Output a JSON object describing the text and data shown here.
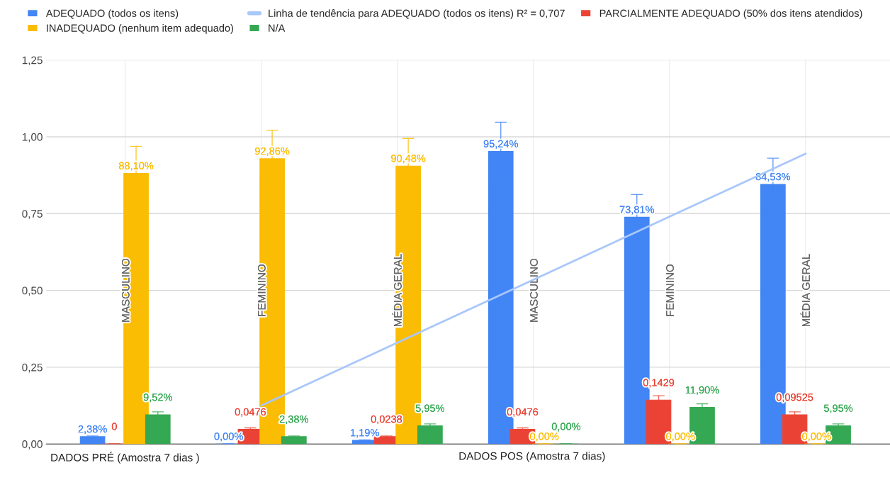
{
  "chart_data": {
    "type": "bar",
    "categories": [
      "MASCULINO",
      "FEMININO",
      "MÉDIA GERAL",
      "MASCULINO",
      "FEMININO",
      "MÉDIA GERAL"
    ],
    "series": [
      {
        "name": "ADEQUADO (todos os itens)",
        "color": "#4285f4",
        "values": [
          0.0238,
          0.0,
          0.0119,
          0.9524,
          0.7381,
          0.8453
        ],
        "errors": [
          0.0024,
          0,
          0.0012,
          0.095,
          0.074,
          0.085
        ],
        "value_labels": [
          "2,38%",
          "0,00%",
          "1,19%",
          "95,24%",
          "73,81%",
          "84,53%"
        ]
      },
      {
        "name": "Linha de tendência para ADEQUADO (todos os itens) R² = 0,707",
        "type": "line",
        "color": "#a8c7fa",
        "values": [
          null,
          0.125,
          0.33,
          0.535,
          0.74,
          0.945
        ]
      },
      {
        "name": "PARCIALMENTE ADEQUADO (50% dos itens atendidos)",
        "color": "#ea4335",
        "values": [
          0,
          0.0476,
          0.0238,
          0.0476,
          0.1429,
          0.09525
        ],
        "errors": [
          0,
          0.0048,
          0.0024,
          0.0048,
          0.0143,
          0.0095
        ],
        "value_labels": [
          "0",
          "0,0476",
          "0,0238",
          "0,0476",
          "0,1429",
          "0,09525"
        ]
      },
      {
        "name": "INADEQUADO (nenhum item adequado)",
        "color": "#fbbc04",
        "values": [
          0.881,
          0.9286,
          0.9048,
          0,
          0,
          0
        ],
        "errors": [
          0.088,
          0.093,
          0.09,
          0,
          0,
          0
        ],
        "value_labels": [
          "88,10%",
          "92,86%",
          "90,48%",
          "0,00%",
          "0,00%",
          "0,00%"
        ]
      },
      {
        "name": "N/A",
        "color": "#34a853",
        "values": [
          0.0952,
          0.0238,
          0.0595,
          0,
          0.119,
          0.0595
        ],
        "errors": [
          0.0095,
          0.0024,
          0.006,
          0,
          0.012,
          0.006
        ],
        "value_labels": [
          "9,52%",
          "2,38%",
          "5,95%",
          "0,00%",
          "11,90%",
          "5,95%"
        ]
      }
    ],
    "ylim": [
      0,
      1.25
    ],
    "yticks": [
      {
        "value": 0,
        "label": "0,00"
      },
      {
        "value": 0.25,
        "label": "0,25"
      },
      {
        "value": 0.5,
        "label": "0,50"
      },
      {
        "value": 0.75,
        "label": "0,75"
      },
      {
        "value": 1.0,
        "label": "1,00"
      },
      {
        "value": 1.25,
        "label": "1,25"
      }
    ],
    "annotations": [
      "DADOS PRÉ (Amostra 7 dias )",
      "DADOS POS (Amostra 7 dias)"
    ],
    "grid": true,
    "legend": "top"
  }
}
